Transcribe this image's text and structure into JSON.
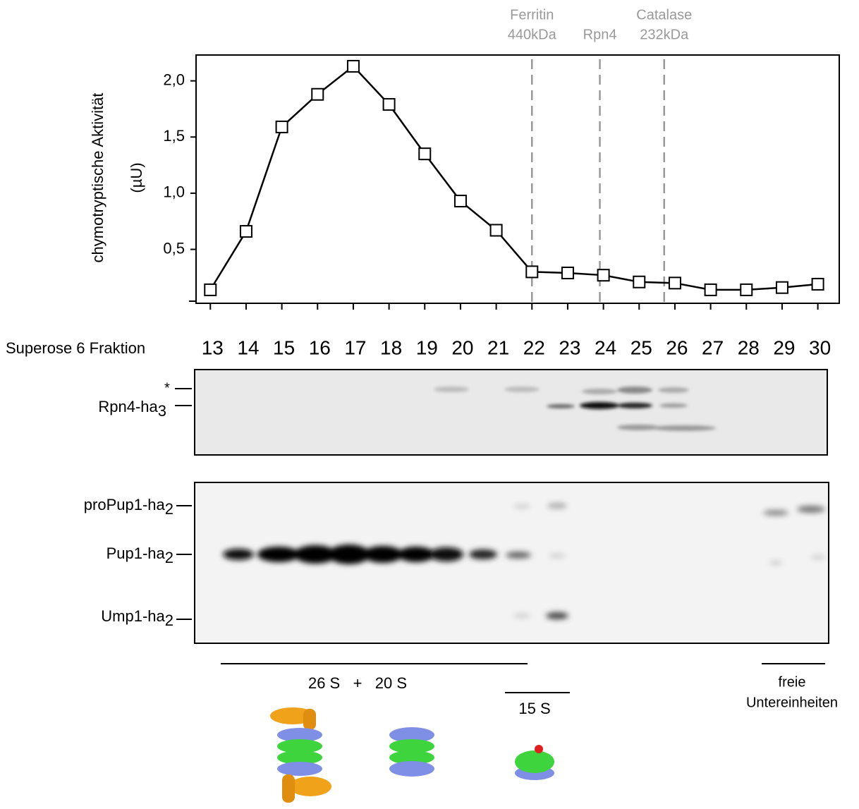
{
  "chart_data": {
    "type": "line",
    "ylabel": [
      "chymotryptische Aktivität",
      "(µU)"
    ],
    "xlabel": "Superose 6 Fraktion",
    "x": [
      13,
      14,
      15,
      16,
      17,
      18,
      19,
      20,
      21,
      22,
      23,
      24,
      25,
      26,
      27,
      28,
      29,
      30
    ],
    "series": [
      {
        "color": "#000000",
        "values": [
          0.14,
          0.66,
          1.59,
          1.88,
          2.13,
          1.79,
          1.35,
          0.93,
          0.67,
          0.3,
          0.29,
          0.27,
          0.21,
          0.2,
          0.14,
          0.14,
          0.16,
          0.19
        ]
      }
    ],
    "xlim": [
      12.6,
      30.6
    ],
    "ylim": [
      0.02,
      2.23
    ],
    "xticks": [
      13,
      14,
      15,
      16,
      17,
      18,
      19,
      20,
      21,
      22,
      23,
      24,
      25,
      26,
      27,
      28,
      29,
      30
    ],
    "yticks": [
      {
        "value": 0.5,
        "label": "0,5"
      },
      {
        "value": 1.0,
        "label": "1,0"
      },
      {
        "value": 1.5,
        "label": "1,5"
      },
      {
        "value": 2.0,
        "label": "2,0"
      }
    ],
    "annotations": [
      {
        "x": 22.0,
        "lines": [
          "Ferritin",
          "440kDa"
        ]
      },
      {
        "x": 23.9,
        "lines": [
          "Rpn4"
        ]
      },
      {
        "x": 25.7,
        "lines": [
          "Catalase",
          "232kDa"
        ]
      }
    ],
    "annotation_color": "#999999"
  },
  "blots": {
    "rpn4": {
      "star": "*",
      "label": "Rpn4-ha",
      "sub": "3"
    },
    "pup": [
      {
        "label": "proPup1-ha",
        "sub": "2"
      },
      {
        "label": "Pup1-ha",
        "sub": "2"
      },
      {
        "label": "Ump1-ha",
        "sub": "2"
      }
    ]
  },
  "complexes": {
    "main": "26 S   +   20 S",
    "mid": "15 S",
    "free": [
      "freie",
      "Untereinheiten"
    ]
  }
}
